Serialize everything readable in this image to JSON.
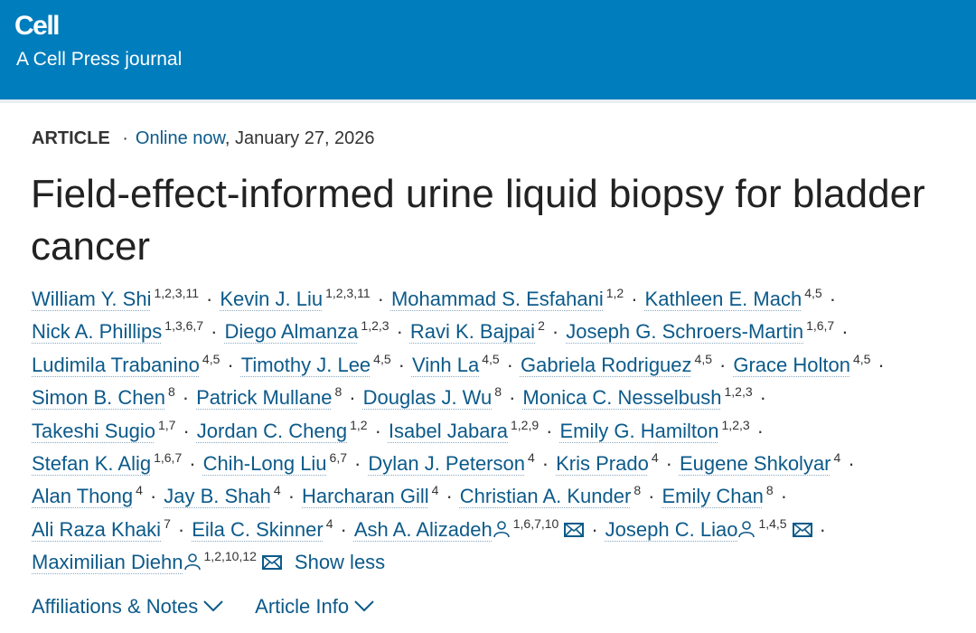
{
  "header": {
    "journal": "Cell",
    "subtitle": "A Cell Press journal",
    "brand_color": "#007dbc"
  },
  "meta": {
    "type": "ARTICLE",
    "separator": "·",
    "status": "Online now",
    "date": ", January 27, 2026"
  },
  "title": "Field-effect-informed urine liquid biopsy for bladder cancer",
  "authors": [
    {
      "name": "William Y. Shi",
      "aff": "1,2,3,11"
    },
    {
      "name": "Kevin J. Liu",
      "aff": "1,2,3,11"
    },
    {
      "name": "Mohammad S. Esfahani",
      "aff": "1,2"
    },
    {
      "name": "Kathleen E. Mach",
      "aff": "4,5"
    },
    {
      "name": "Nick A. Phillips",
      "aff": "1,3,6,7"
    },
    {
      "name": "Diego Almanza",
      "aff": "1,2,3"
    },
    {
      "name": "Ravi K. Bajpai",
      "aff": "2"
    },
    {
      "name": "Joseph G. Schroers-Martin",
      "aff": "1,6,7"
    },
    {
      "name": "Ludimila Trabanino",
      "aff": "4,5"
    },
    {
      "name": "Timothy J. Lee",
      "aff": "4,5"
    },
    {
      "name": "Vinh La",
      "aff": "4,5"
    },
    {
      "name": "Gabriela Rodriguez",
      "aff": "4,5"
    },
    {
      "name": "Grace Holton",
      "aff": "4,5"
    },
    {
      "name": "Simon B. Chen",
      "aff": "8"
    },
    {
      "name": "Patrick Mullane",
      "aff": "8"
    },
    {
      "name": "Douglas J. Wu",
      "aff": "8"
    },
    {
      "name": "Monica C. Nesselbush",
      "aff": "1,2,3"
    },
    {
      "name": "Takeshi Sugio",
      "aff": "1,7"
    },
    {
      "name": "Jordan C. Cheng",
      "aff": "1,2"
    },
    {
      "name": "Isabel Jabara",
      "aff": "1,2,9"
    },
    {
      "name": "Emily G. Hamilton",
      "aff": "1,2,3"
    },
    {
      "name": "Stefan K. Alig",
      "aff": "1,6,7"
    },
    {
      "name": "Chih-Long Liu",
      "aff": "6,7"
    },
    {
      "name": "Dylan J. Peterson",
      "aff": "4"
    },
    {
      "name": "Kris Prado",
      "aff": "4"
    },
    {
      "name": "Eugene Shkolyar",
      "aff": "4"
    },
    {
      "name": "Alan Thong",
      "aff": "4"
    },
    {
      "name": "Jay B. Shah",
      "aff": "4"
    },
    {
      "name": "Harcharan Gill",
      "aff": "4"
    },
    {
      "name": "Christian A. Kunder",
      "aff": "8"
    },
    {
      "name": "Emily Chan",
      "aff": "8"
    },
    {
      "name": "Ali Raza Khaki",
      "aff": "7"
    },
    {
      "name": "Eila C. Skinner",
      "aff": "4"
    },
    {
      "name": "Ash A. Alizadeh",
      "aff": "1,6,7,10",
      "corresponding": true
    },
    {
      "name": "Joseph C. Liao",
      "aff": "1,4,5",
      "corresponding": true
    },
    {
      "name": "Maximilian Diehn",
      "aff": "1,2,10,12",
      "corresponding": true
    }
  ],
  "author_separator": "·",
  "show_less": "Show less",
  "links": [
    {
      "label": "Affiliations & Notes"
    },
    {
      "label": "Article Info"
    }
  ],
  "link_color": "#0c5a8a"
}
